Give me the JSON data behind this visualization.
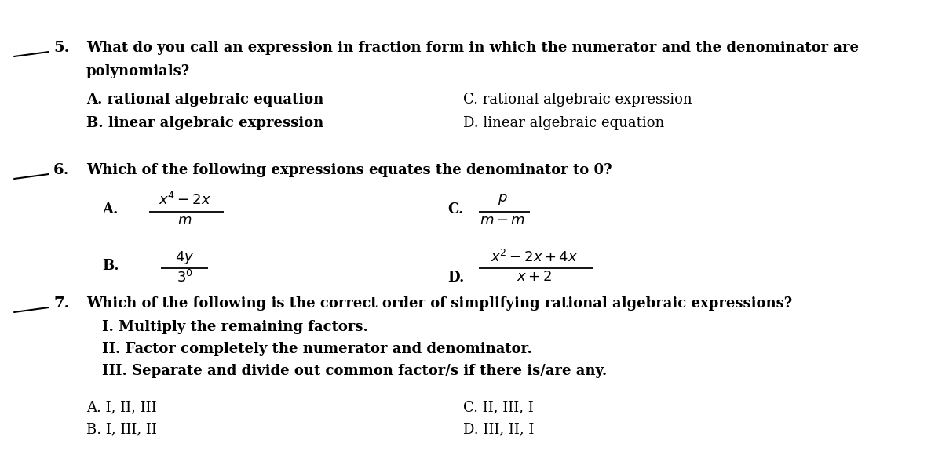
{
  "bg_color": "#ffffff",
  "text_color": "#000000",
  "figsize": [
    12.0,
    5.98
  ],
  "dpi": 100,
  "q5_number": "5.",
  "q5_line1": "What do you call an expression in fraction form in which the numerator and the denominator are",
  "q5_line2": "polynomials?",
  "q5_A": "A. rational algebraic equation",
  "q5_B": "B. linear algebraic expression",
  "q5_C": "C. rational algebraic expression",
  "q5_D": "D. linear algebraic equation",
  "q6_number": "6.",
  "q6_line1": "Which of the following expressions equates the denominator to 0?",
  "q7_number": "7.",
  "q7_line1": "Which of the following is the correct order of simplifying rational algebraic expressions?",
  "q7_I": "I. Multiply the remaining factors.",
  "q7_II": "II. Factor completely the numerator and denominator.",
  "q7_III": "III. Separate and divide out common factor/s if there is/are any.",
  "q7_A": "A. I, II, III",
  "q7_B": "B. I, III, II",
  "q7_C": "C. II, III, I",
  "q7_D": "D. III, II, I",
  "frac_A_num": "$x^4-2x$",
  "frac_A_den": "$m$",
  "frac_B_num": "$4y$",
  "frac_B_den": "$3^0$",
  "frac_C_num": "$p$",
  "frac_C_den": "$m-m$",
  "frac_D_num": "$x^2-2x+4x$",
  "frac_D_den": "$x+2$"
}
